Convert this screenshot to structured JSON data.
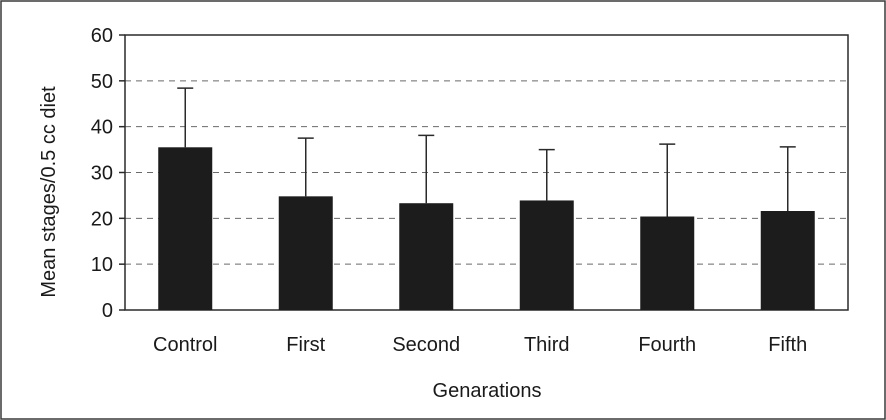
{
  "chart_data": {
    "type": "bar",
    "title": "",
    "xlabel": "Genarations",
    "ylabel": "Mean stages/0.5 cc diet",
    "categories": [
      "Control",
      "First",
      "Second",
      "Third",
      "Fourth",
      "Fifth"
    ],
    "values": [
      35.5,
      24.8,
      23.3,
      23.9,
      20.4,
      21.6
    ],
    "error_upper": [
      48.4,
      37.5,
      38.1,
      35.0,
      36.2,
      35.6
    ],
    "ylim": [
      0,
      60
    ],
    "yticks": [
      "0",
      "10",
      "20",
      "30",
      "40",
      "50",
      "60"
    ],
    "grid": true,
    "grid_style": "dashed",
    "legend": "none",
    "bar_color": "#1c1c1c"
  }
}
